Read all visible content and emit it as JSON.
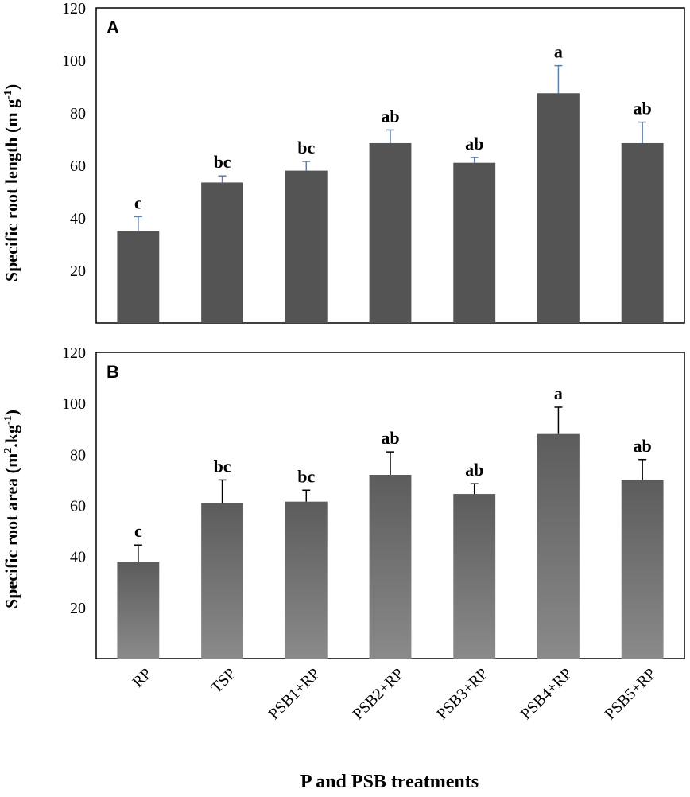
{
  "x_axis_title": "P and PSB treatments",
  "categories": [
    "RP",
    "TSP",
    "PSB1+RP",
    "PSB2+RP",
    "PSB3+RP",
    "PSB4+RP",
    "PSB5+RP"
  ],
  "chart_data": [
    {
      "type": "bar",
      "panel": "A",
      "ylabel_main": "Specific root length (m g",
      "ylabel_sup": "-1",
      "ylabel_end": ")",
      "ylim": [
        0,
        120
      ],
      "yticks": [
        20,
        40,
        60,
        80,
        100,
        120
      ],
      "categories": [
        "RP",
        "TSP",
        "PSB1+RP",
        "PSB2+RP",
        "PSB3+RP",
        "PSB4+RP",
        "PSB5+RP"
      ],
      "values": [
        35,
        53.5,
        58,
        68.5,
        61,
        87.5,
        68.5
      ],
      "errors": [
        5.5,
        2.5,
        3.5,
        5,
        2,
        10.5,
        8
      ],
      "significance": [
        "c",
        "bc",
        "bc",
        "ab",
        "ab",
        "a",
        "ab"
      ],
      "bar_color": "#545454",
      "error_color": "#5b7fa8"
    },
    {
      "type": "bar",
      "panel": "B",
      "ylabel_main": "Specific root area (m",
      "ylabel_sup": "2",
      "ylabel_end": ".kg",
      "ylabel_sup2": "-1",
      "ylabel_close": ")",
      "ylim": [
        0,
        120
      ],
      "yticks": [
        20,
        40,
        60,
        80,
        100,
        120
      ],
      "categories": [
        "RP",
        "TSP",
        "PSB1+RP",
        "PSB2+RP",
        "PSB3+RP",
        "PSB4+RP",
        "PSB5+RP"
      ],
      "values": [
        38,
        61,
        61.5,
        72,
        64.5,
        88,
        70
      ],
      "errors": [
        6.5,
        9,
        4.5,
        9,
        4,
        10.5,
        8
      ],
      "significance": [
        "c",
        "bc",
        "bc",
        "ab",
        "ab",
        "a",
        "ab"
      ],
      "bar_color_top": "#5c5c5c",
      "bar_color_bottom": "#8a8a8a",
      "error_color": "#000000"
    }
  ]
}
